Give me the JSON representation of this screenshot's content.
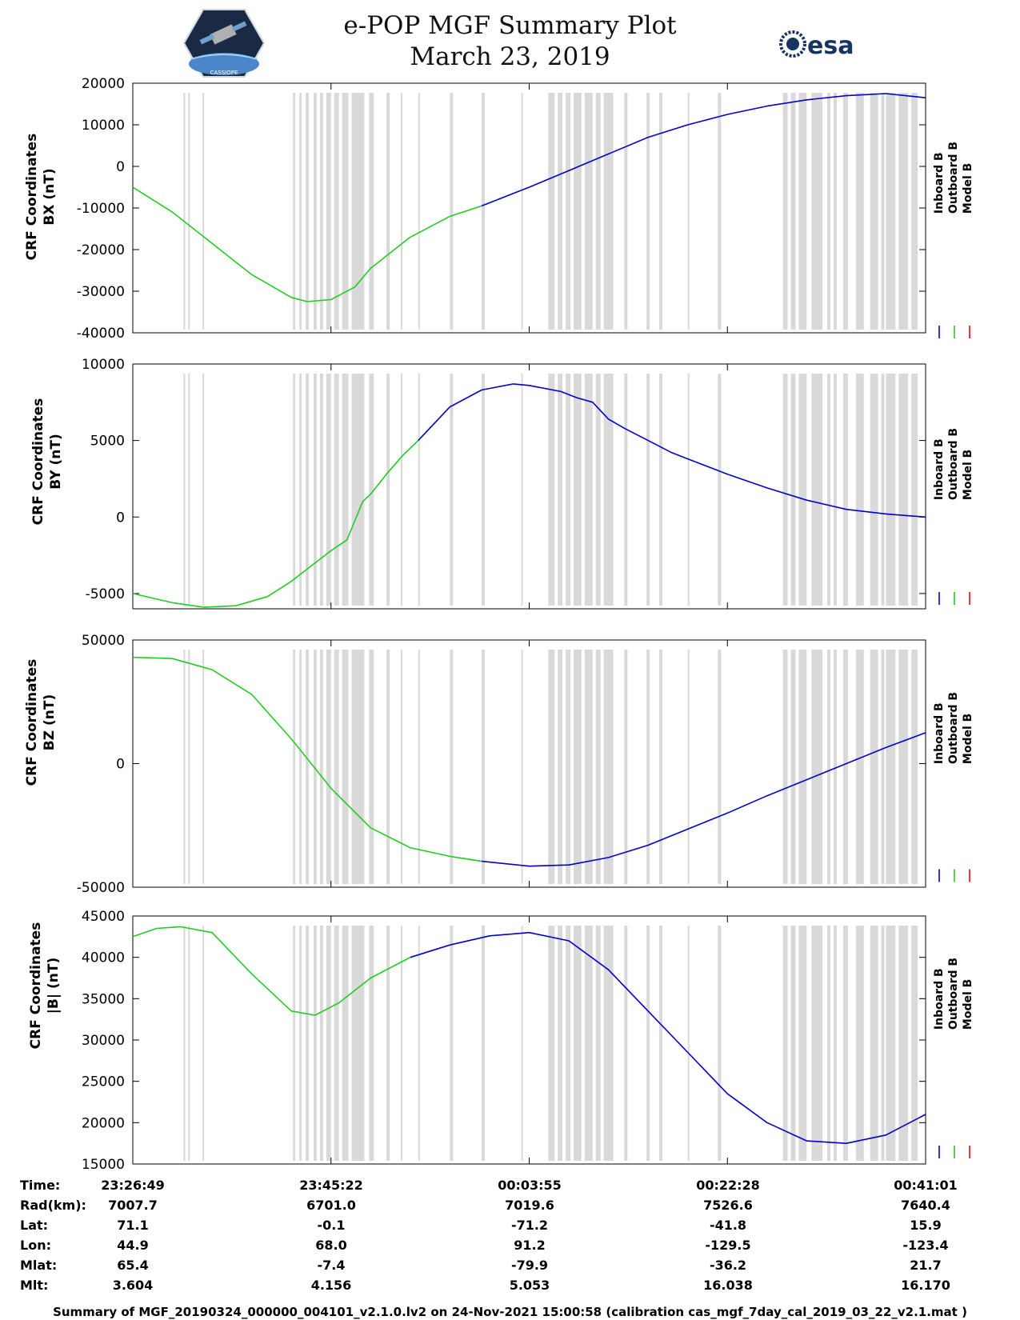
{
  "title_line1": "e-POP MGF Summary Plot",
  "title_line2": "March 23, 2019",
  "esa_logo_text": "esa",
  "epop_logo_text": "CASSIOPE",
  "legend": [
    "Inboard B",
    "Outboard B",
    "Model B"
  ],
  "colors": {
    "inboard": "#0000cc",
    "outboard": "#22cc22",
    "model": "#ff0000",
    "gap": "#d9d9d9"
  },
  "info": {
    "labels": [
      "Time:",
      "Rad(km):",
      "Lat:",
      "Lon:",
      "Mlat:",
      "Mlt:"
    ],
    "columns": [
      [
        "23:26:49",
        "7007.7",
        "71.1",
        "44.9",
        "65.4",
        "3.604"
      ],
      [
        "23:45:22",
        "6701.0",
        "-0.1",
        "68.0",
        "-7.4",
        "4.156"
      ],
      [
        "00:03:55",
        "7019.6",
        "-71.2",
        "91.2",
        "-79.9",
        "5.053"
      ],
      [
        "00:22:28",
        "7526.6",
        "-41.8",
        "-129.5",
        "-36.2",
        "16.038"
      ],
      [
        "00:41:01",
        "7640.4",
        "15.9",
        "-123.4",
        "21.7",
        "16.170"
      ]
    ]
  },
  "footer": "Summary of MGF_20190324_000000_004101_v2.1.0.lv2 on 24-Nov-2021 15:00:58 (calibration cas_mgf_7day_cal_2019_03_22_v2.1.mat )",
  "chart_data": [
    {
      "type": "line",
      "ylabel": [
        "CRF Coordinates",
        "BX (nT)"
      ],
      "ylim": [
        -40000,
        20000
      ],
      "yticks": [
        20000,
        10000,
        0,
        -10000,
        -20000,
        -30000,
        -40000
      ],
      "xlim": [
        0,
        1
      ],
      "x_tick_labels": [
        "23:26:49",
        "23:45:22",
        "00:03:55",
        "00:22:28",
        "00:41:01"
      ],
      "series": [
        {
          "name": "Outboard B",
          "color": "#22cc22",
          "x": [
            0,
            0.05,
            0.1,
            0.15,
            0.2,
            0.22,
            0.25,
            0.28,
            0.3,
            0.35,
            0.4,
            0.44
          ],
          "values": [
            -5000,
            -11000,
            -18500,
            -26000,
            -31500,
            -32500,
            -32000,
            -29000,
            -24500,
            -17000,
            -12000,
            -9500
          ]
        },
        {
          "name": "Inboard B",
          "color": "#0000cc",
          "x": [
            0.44,
            0.5,
            0.55,
            0.6,
            0.65,
            0.7,
            0.75,
            0.8,
            0.85,
            0.9,
            0.95,
            1.0
          ],
          "values": [
            -9500,
            -5000,
            -1000,
            3000,
            7000,
            10000,
            12500,
            14500,
            16000,
            17000,
            17500,
            16500
          ]
        }
      ]
    },
    {
      "type": "line",
      "ylabel": [
        "CRF Coordinates",
        "BY (nT)"
      ],
      "ylim": [
        -6000,
        10000
      ],
      "yticks": [
        10000,
        5000,
        0,
        -5000
      ],
      "xlim": [
        0,
        1
      ],
      "x_tick_labels": [
        "23:26:49",
        "23:45:22",
        "00:03:55",
        "00:22:28",
        "00:41:01"
      ],
      "series": [
        {
          "name": "Outboard B",
          "color": "#22cc22",
          "x": [
            0,
            0.05,
            0.09,
            0.13,
            0.17,
            0.2,
            0.23,
            0.25,
            0.27,
            0.29,
            0.3,
            0.32,
            0.34,
            0.36
          ],
          "values": [
            -5000,
            -5600,
            -5900,
            -5800,
            -5200,
            -4200,
            -3000,
            -2200,
            -1500,
            1000,
            1500,
            2800,
            4000,
            5000
          ]
        },
        {
          "name": "Inboard B",
          "color": "#0000cc",
          "x": [
            0.36,
            0.4,
            0.44,
            0.48,
            0.5,
            0.54,
            0.56,
            0.58,
            0.6,
            0.62,
            0.65,
            0.68,
            0.7,
            0.72,
            0.75,
            0.8,
            0.85,
            0.9,
            0.95,
            1.0
          ],
          "values": [
            5000,
            7200,
            8300,
            8700,
            8600,
            8200,
            7800,
            7500,
            6400,
            5800,
            5000,
            4200,
            3800,
            3400,
            2800,
            1900,
            1100,
            500,
            200,
            0
          ]
        }
      ]
    },
    {
      "type": "line",
      "ylabel": [
        "CRF Coordinates",
        "BZ (nT)"
      ],
      "ylim": [
        -50000,
        50000
      ],
      "yticks": [
        50000,
        0,
        -50000
      ],
      "xlim": [
        0,
        1
      ],
      "x_tick_labels": [
        "23:26:49",
        "23:45:22",
        "00:03:55",
        "00:22:28",
        "00:41:01"
      ],
      "series": [
        {
          "name": "Outboard B",
          "color": "#22cc22",
          "x": [
            0,
            0.05,
            0.1,
            0.15,
            0.2,
            0.25,
            0.3,
            0.35,
            0.4,
            0.44
          ],
          "values": [
            43000,
            42500,
            38000,
            28000,
            10000,
            -10000,
            -26000,
            -34000,
            -37500,
            -39500
          ]
        },
        {
          "name": "Inboard B",
          "color": "#0000cc",
          "x": [
            0.44,
            0.5,
            0.55,
            0.6,
            0.65,
            0.7,
            0.75,
            0.8,
            0.85,
            0.9,
            0.95,
            1.0
          ],
          "values": [
            -39500,
            -41500,
            -41000,
            -38000,
            -33000,
            -26500,
            -20000,
            -13000,
            -6500,
            0,
            6500,
            12500
          ]
        }
      ]
    },
    {
      "type": "line",
      "ylabel": [
        "CRF Coordinates",
        "|B| (nT)"
      ],
      "ylim": [
        15000,
        45000
      ],
      "yticks": [
        45000,
        40000,
        35000,
        30000,
        25000,
        20000,
        15000
      ],
      "xlim": [
        0,
        1
      ],
      "x_tick_labels": [
        "23:26:49",
        "23:45:22",
        "00:03:55",
        "00:22:28",
        "00:41:01"
      ],
      "series": [
        {
          "name": "Outboard B",
          "color": "#22cc22",
          "x": [
            0,
            0.03,
            0.06,
            0.1,
            0.15,
            0.2,
            0.23,
            0.26,
            0.3,
            0.35
          ],
          "values": [
            42500,
            43500,
            43700,
            43000,
            38000,
            33500,
            33000,
            34500,
            37500,
            40000
          ]
        },
        {
          "name": "Inboard B",
          "color": "#0000cc",
          "x": [
            0.35,
            0.4,
            0.45,
            0.5,
            0.55,
            0.6,
            0.65,
            0.7,
            0.75,
            0.8,
            0.85,
            0.9,
            0.95,
            1.0
          ],
          "values": [
            40000,
            41500,
            42600,
            43000,
            42000,
            38500,
            33500,
            28500,
            23500,
            20000,
            17800,
            17500,
            18500,
            21000
          ]
        }
      ]
    }
  ]
}
